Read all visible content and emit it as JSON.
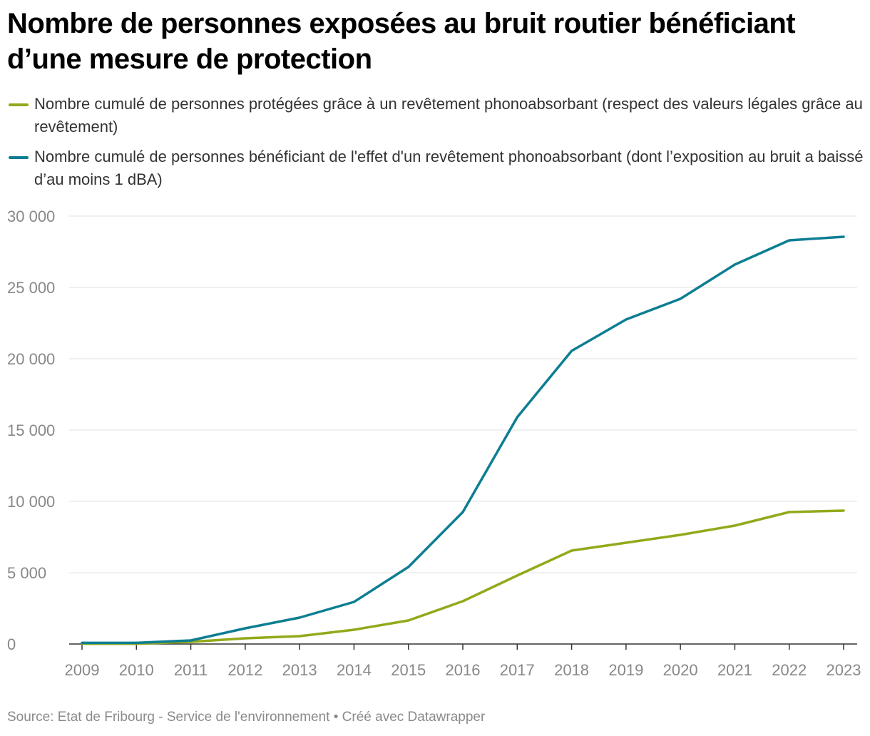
{
  "title": "Nombre de personnes exposées au bruit routier bénéficiant d’une mesure de protection",
  "legend": [
    {
      "label": "Nombre cumulé de personnes protégées grâce à un revêtement phonoabsorbant (respect des valeurs légales grâce au revêtement)",
      "color": "#93a91a"
    },
    {
      "label": "Nombre cumulé de personnes bénéficiant de l'effet d'un revêtement phonoabsorbant (dont l’exposition au bruit a baissé d’au moins 1 dBA)",
      "color": "#0d7e92"
    }
  ],
  "source": "Source: Etat de Fribourg - Service de l'environnement • Créé avec Datawrapper",
  "chart_data": {
    "type": "line",
    "title": "Nombre de personnes exposées au bruit routier bénéficiant d’une mesure de protection",
    "xlabel": "",
    "ylabel": "",
    "x": [
      "2009",
      "2010",
      "2011",
      "2012",
      "2013",
      "2014",
      "2015",
      "2016",
      "2017",
      "2018",
      "2019",
      "2020",
      "2021",
      "2022",
      "2023"
    ],
    "ylim": [
      0,
      30000
    ],
    "yticks": [
      0,
      5000,
      10000,
      15000,
      20000,
      25000,
      30000
    ],
    "ytick_labels": [
      "0",
      "5 000",
      "10 000",
      "15 000",
      "20 000",
      "25 000",
      "30 000"
    ],
    "grid": true,
    "series": [
      {
        "name": "Nombre cumulé de personnes protégées grâce à un revêtement phonoabsorbant (respect des valeurs légales grâce au revêtement)",
        "color": "#93a91a",
        "values": [
          20,
          20,
          150,
          400,
          550,
          1000,
          1650,
          3000,
          4800,
          6550,
          7100,
          7650,
          8300,
          9250,
          9350
        ]
      },
      {
        "name": "Nombre cumulé de personnes bénéficiant de l'effet d'un revêtement phonoabsorbant (dont l’exposition au bruit a baissé d’au moins 1 dBA)",
        "color": "#0d7e92",
        "values": [
          80,
          80,
          250,
          1100,
          1850,
          2950,
          5400,
          9250,
          15900,
          20550,
          22750,
          24200,
          26600,
          28300,
          28550
        ]
      }
    ]
  }
}
